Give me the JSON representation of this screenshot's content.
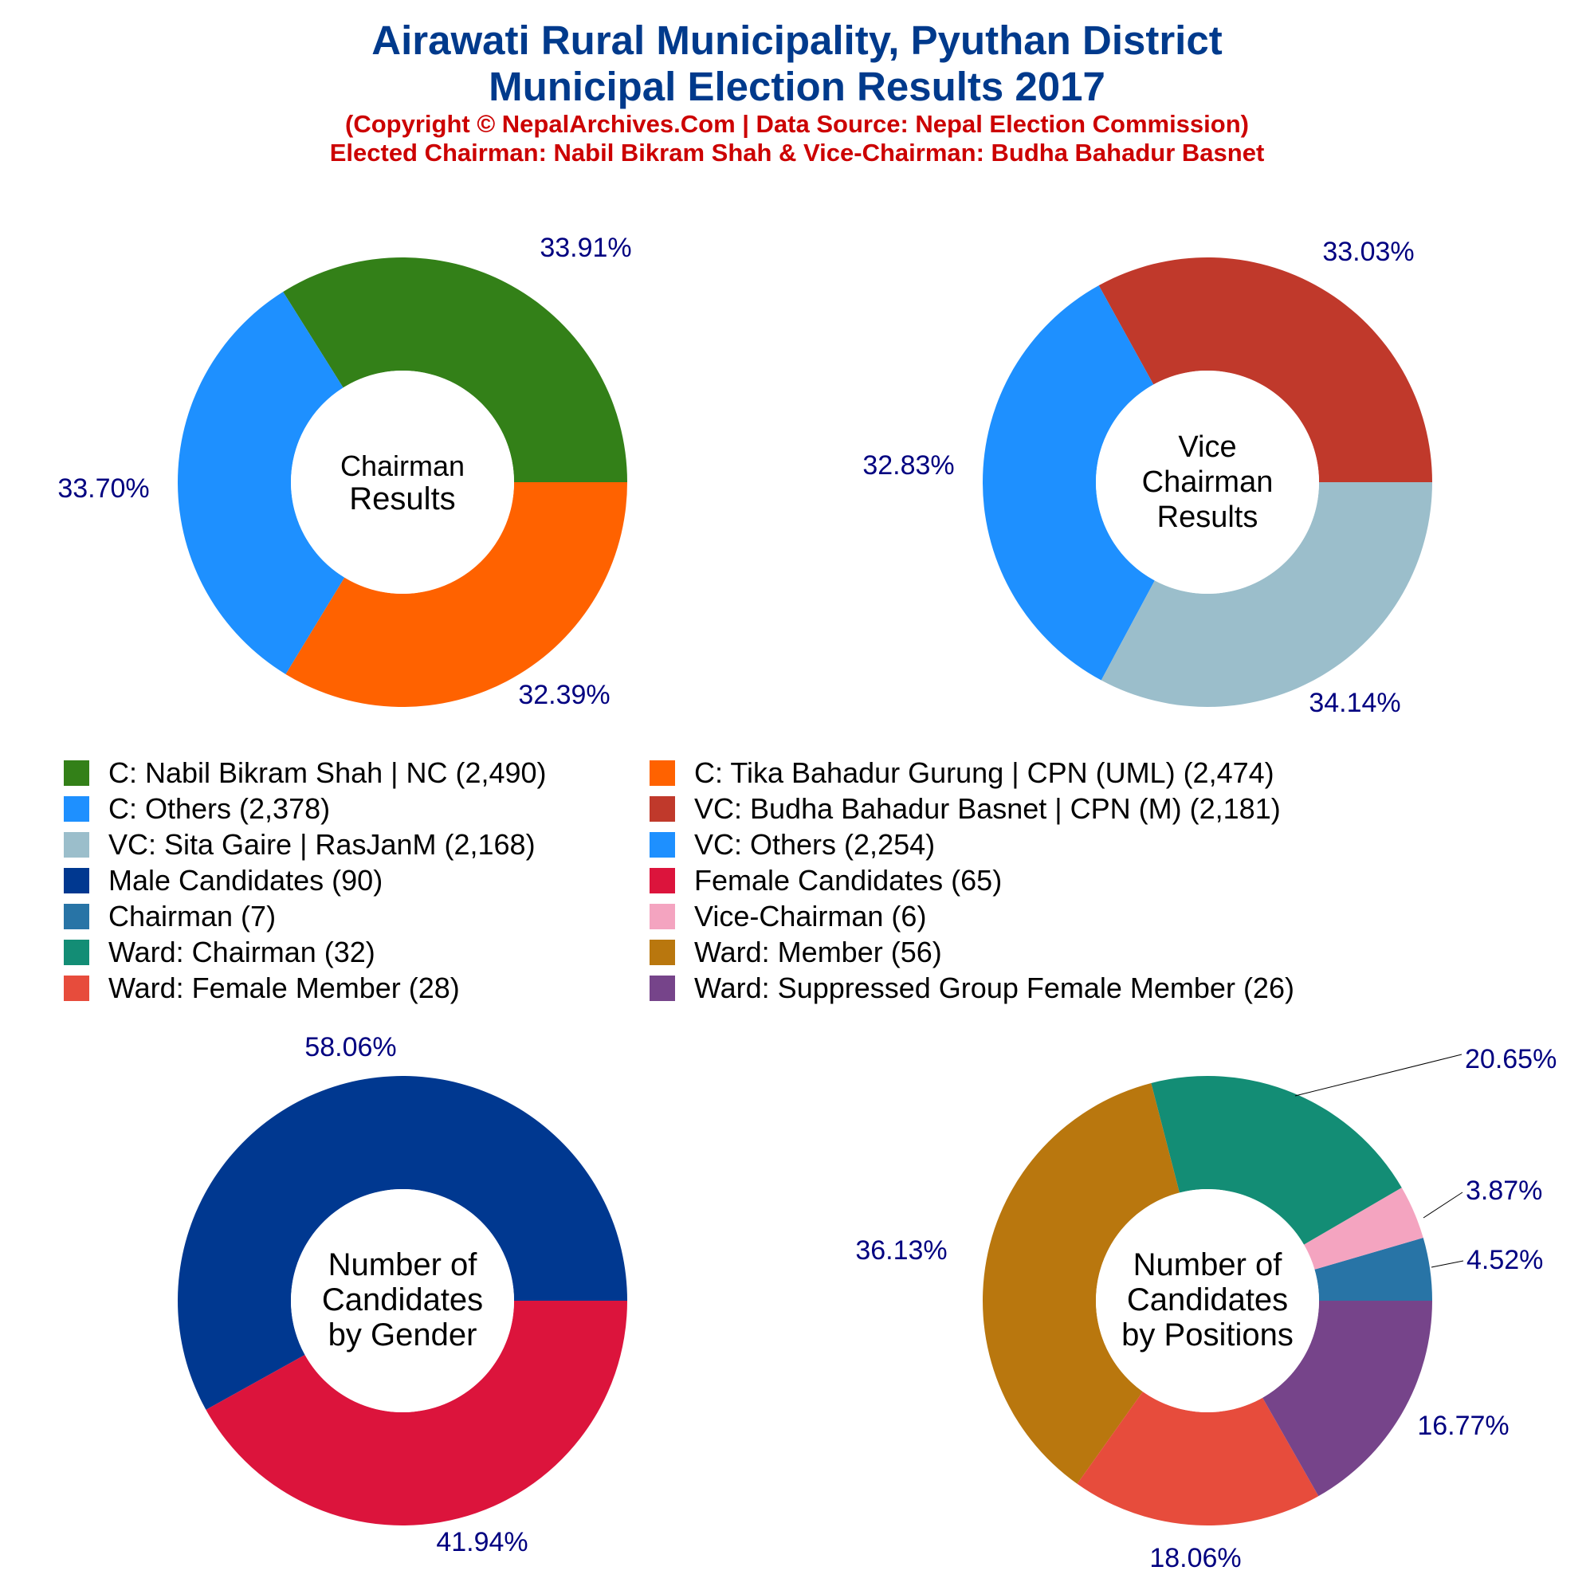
{
  "header": {
    "title_line1": "Airawati Rural Municipality, Pyuthan District",
    "title_line2": "Municipal Election Results 2017",
    "subtitle_line1": "(Copyright © NepalArchives.Com | Data Source: Nepal Election Commission)",
    "subtitle_line2": "Elected Chairman: Nabil Bikram Shah & Vice-Chairman: Budha Bahadur Basnet"
  },
  "legend": [
    {
      "label": "C: Nabil Bikram Shah | NC (2,490)",
      "color": "#338018"
    },
    {
      "label": "C: Tika Bahadur Gurung | CPN (UML) (2,474)",
      "color": "#ff6200"
    },
    {
      "label": "C: Others (2,378)",
      "color": "#1e90ff"
    },
    {
      "label": "VC: Budha Bahadur Basnet | CPN (M) (2,181)",
      "color": "#c0392b"
    },
    {
      "label": "VC: Sita Gaire | RasJanM (2,168)",
      "color": "#9bbecb"
    },
    {
      "label": "VC: Others (2,254)",
      "color": "#1e90ff"
    },
    {
      "label": "Male Candidates (90)",
      "color": "#003890"
    },
    {
      "label": "Female Candidates (65)",
      "color": "#dc143c"
    },
    {
      "label": "Chairman (7)",
      "color": "#2874a6"
    },
    {
      "label": "Vice-Chairman (6)",
      "color": "#f4a4c0"
    },
    {
      "label": "Ward: Chairman (32)",
      "color": "#138d75"
    },
    {
      "label": "Ward: Member (56)",
      "color": "#b9770e"
    },
    {
      "label": "Ward: Female Member (28)",
      "color": "#e74c3c"
    },
    {
      "label": "Ward: Suppressed Group Female Member (26)",
      "color": "#76448a"
    }
  ],
  "chart_data": [
    {
      "type": "pie",
      "title_lines": [
        "Chairman",
        "Results"
      ],
      "slices": [
        {
          "name": "C: Nabil Bikram Shah | NC",
          "value": 2490,
          "percent": "33.91%",
          "color": "#338018"
        },
        {
          "name": "C: Others",
          "value": 2378,
          "percent": "32.39%",
          "color": "#1e90ff"
        },
        {
          "name": "C: Tika Bahadur Gurung | CPN (UML)",
          "value": 2474,
          "percent": "33.70%",
          "color": "#ff6200"
        }
      ]
    },
    {
      "type": "pie",
      "title_lines": [
        "Vice",
        "Chairman",
        "Results"
      ],
      "slices": [
        {
          "name": "VC: Budha Bahadur Basnet | CPN (M)",
          "value": 2181,
          "percent": "33.03%",
          "color": "#c0392b"
        },
        {
          "name": "VC: Others",
          "value": 2254,
          "percent": "34.14%",
          "color": "#1e90ff"
        },
        {
          "name": "VC: Sita Gaire | RasJanM",
          "value": 2168,
          "percent": "32.83%",
          "color": "#9bbecb"
        }
      ]
    },
    {
      "type": "pie",
      "title_lines": [
        "Number of",
        "Candidates",
        "by Gender"
      ],
      "slices": [
        {
          "name": "Male Candidates",
          "value": 90,
          "percent": "58.06%",
          "color": "#003890"
        },
        {
          "name": "Female Candidates",
          "value": 65,
          "percent": "41.94%",
          "color": "#dc143c"
        }
      ]
    },
    {
      "type": "pie",
      "title_lines": [
        "Number of",
        "Candidates",
        "by Positions"
      ],
      "slices": [
        {
          "name": "Chairman",
          "value": 7,
          "percent": "4.52%",
          "color": "#2874a6"
        },
        {
          "name": "Vice-Chairman",
          "value": 6,
          "percent": "3.87%",
          "color": "#f4a4c0"
        },
        {
          "name": "Ward: Chairman",
          "value": 32,
          "percent": "20.65%",
          "color": "#138d75"
        },
        {
          "name": "Ward: Member",
          "value": 56,
          "percent": "36.13%",
          "color": "#b9770e"
        },
        {
          "name": "Ward: Female Member",
          "value": 28,
          "percent": "18.06%",
          "color": "#e74c3c"
        },
        {
          "name": "Ward: Suppressed Group Female Member",
          "value": 26,
          "percent": "16.77%",
          "color": "#76448a"
        }
      ]
    }
  ]
}
